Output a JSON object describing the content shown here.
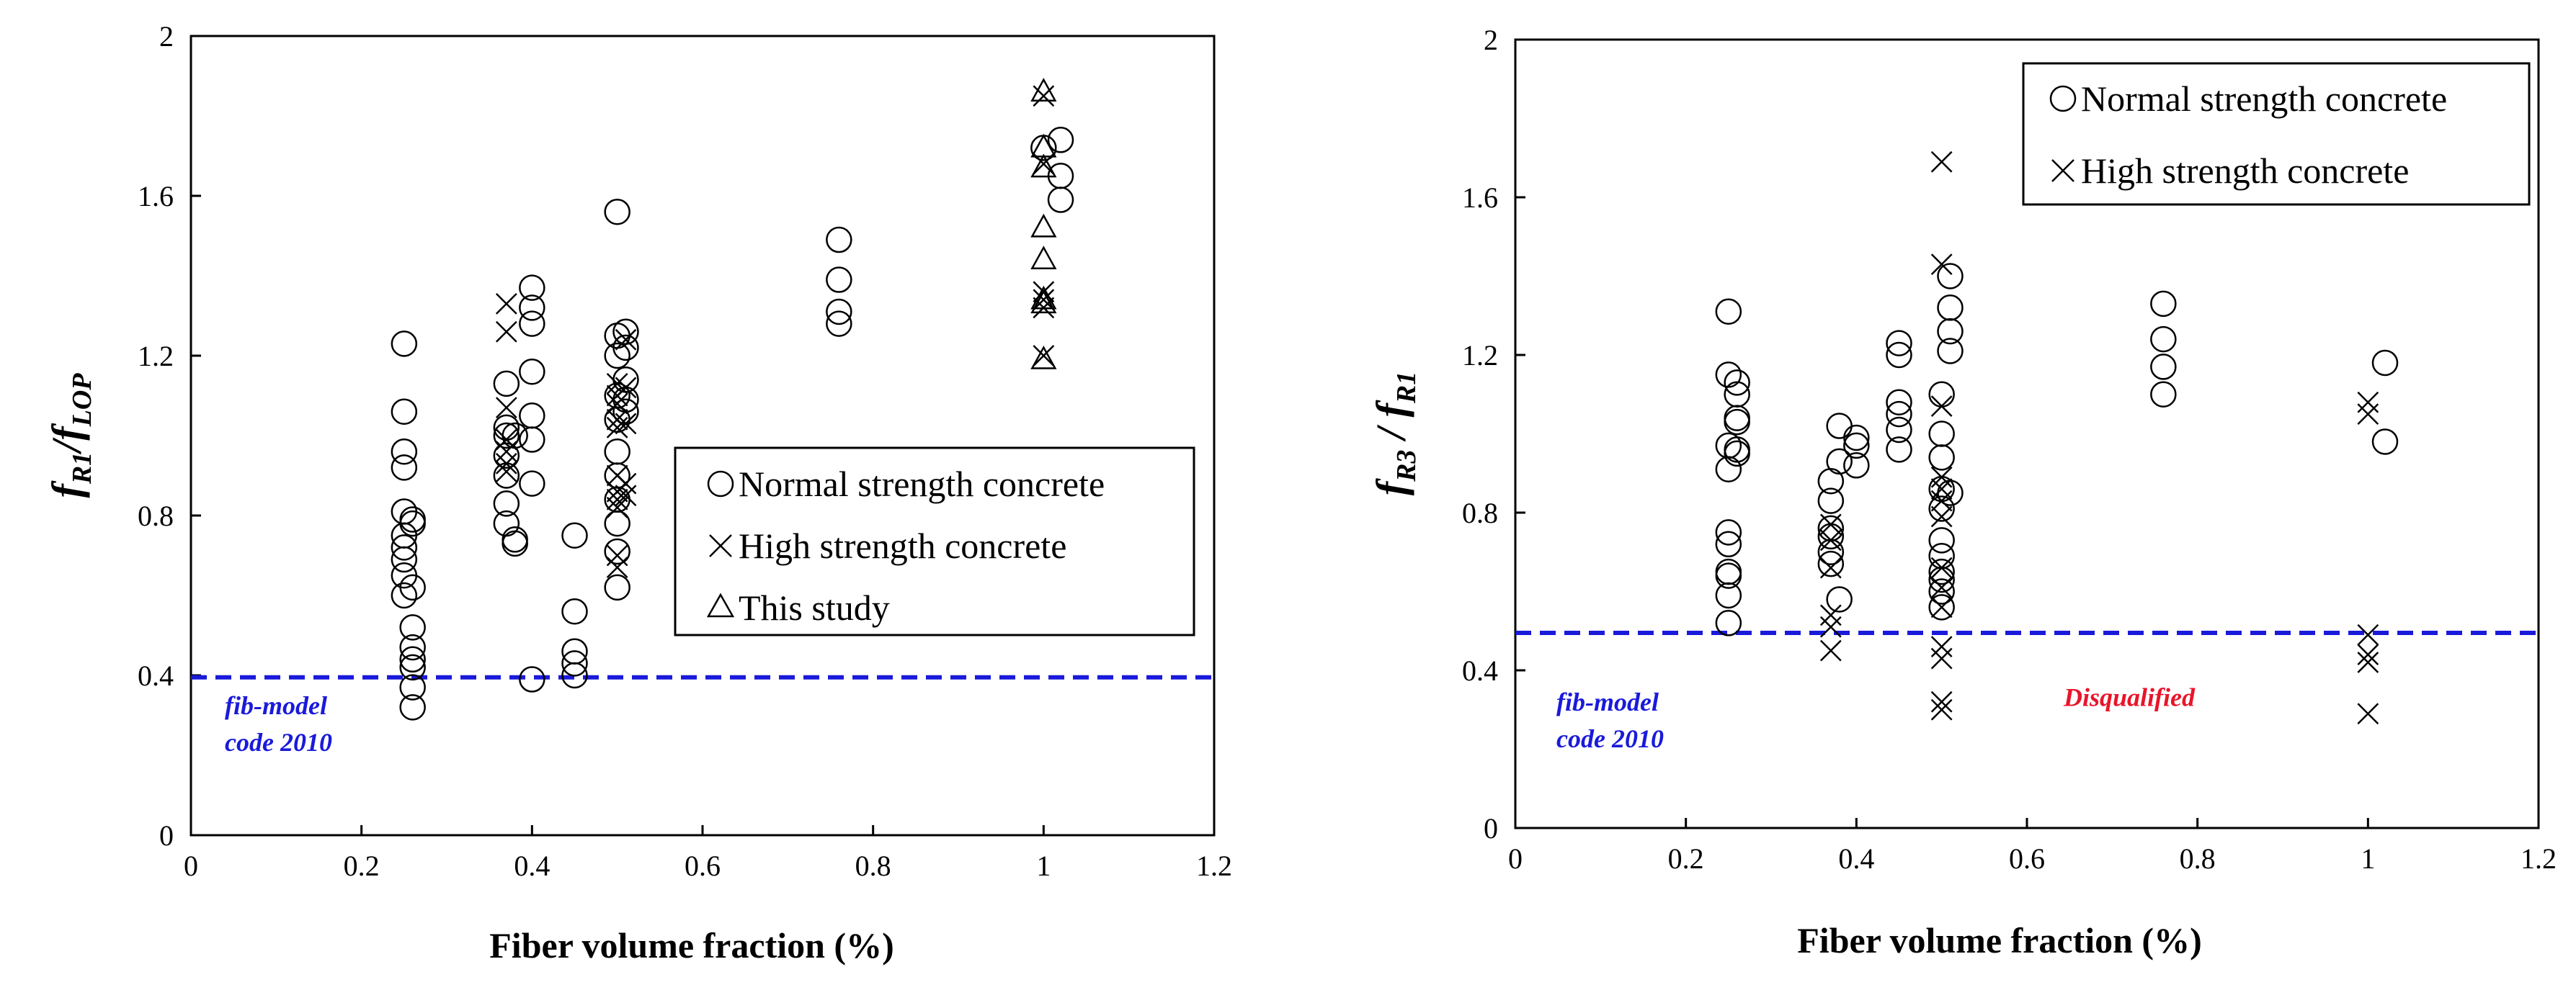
{
  "chart_data": [
    {
      "type": "scatter",
      "xlabel": "Fiber volume fraction (%)",
      "ylabel": {
        "base1": "f",
        "sub1": "R1",
        "sep": "/",
        "base2": "f",
        "sub2": "LOP"
      },
      "xlim": [
        0,
        1.2
      ],
      "ylim": [
        0,
        2
      ],
      "xticks": [
        0,
        0.2,
        0.4,
        0.6,
        0.8,
        1,
        1.2
      ],
      "yticks": [
        0,
        0.4,
        0.8,
        1.2,
        1.6,
        2
      ],
      "xtick_labels": [
        "0",
        "0.2",
        "0.4",
        "0.6",
        "0.8",
        "1",
        "1.2"
      ],
      "ytick_labels": [
        "0",
        "0.4",
        "0.8",
        "1.2",
        "1.6",
        "2"
      ],
      "legend_position": "right-middle",
      "series": [
        {
          "name": "Normal strength concrete",
          "marker": "circle",
          "points": [
            [
              0.25,
              1.23
            ],
            [
              0.25,
              1.06
            ],
            [
              0.25,
              0.96
            ],
            [
              0.25,
              0.92
            ],
            [
              0.25,
              0.81
            ],
            [
              0.25,
              0.75
            ],
            [
              0.25,
              0.72
            ],
            [
              0.25,
              0.69
            ],
            [
              0.25,
              0.65
            ],
            [
              0.25,
              0.6
            ],
            [
              0.26,
              0.78
            ],
            [
              0.26,
              0.79
            ],
            [
              0.26,
              0.62
            ],
            [
              0.26,
              0.52
            ],
            [
              0.26,
              0.47
            ],
            [
              0.26,
              0.44
            ],
            [
              0.26,
              0.42
            ],
            [
              0.26,
              0.37
            ],
            [
              0.26,
              0.32
            ],
            [
              0.37,
              1.13
            ],
            [
              0.37,
              1.02
            ],
            [
              0.37,
              1.0
            ],
            [
              0.37,
              0.95
            ],
            [
              0.37,
              0.9
            ],
            [
              0.37,
              0.83
            ],
            [
              0.37,
              0.78
            ],
            [
              0.38,
              0.74
            ],
            [
              0.38,
              0.73
            ],
            [
              0.38,
              1.0
            ],
            [
              0.4,
              1.37
            ],
            [
              0.4,
              1.32
            ],
            [
              0.4,
              1.28
            ],
            [
              0.4,
              1.16
            ],
            [
              0.4,
              1.05
            ],
            [
              0.4,
              0.99
            ],
            [
              0.4,
              0.88
            ],
            [
              0.4,
              0.39
            ],
            [
              0.45,
              0.75
            ],
            [
              0.45,
              0.56
            ],
            [
              0.45,
              0.46
            ],
            [
              0.45,
              0.43
            ],
            [
              0.45,
              0.4
            ],
            [
              0.5,
              1.56
            ],
            [
              0.5,
              1.25
            ],
            [
              0.5,
              1.2
            ],
            [
              0.5,
              1.1
            ],
            [
              0.5,
              1.04
            ],
            [
              0.5,
              0.96
            ],
            [
              0.5,
              0.9
            ],
            [
              0.5,
              0.84
            ],
            [
              0.5,
              0.78
            ],
            [
              0.5,
              0.71
            ],
            [
              0.5,
              0.62
            ],
            [
              0.51,
              1.26
            ],
            [
              0.51,
              1.22
            ],
            [
              0.51,
              1.14
            ],
            [
              0.51,
              1.06
            ],
            [
              0.51,
              1.09
            ],
            [
              0.76,
              1.49
            ],
            [
              0.76,
              1.39
            ],
            [
              0.76,
              1.31
            ],
            [
              0.76,
              1.28
            ],
            [
              1.0,
              1.72
            ],
            [
              1.02,
              1.74
            ],
            [
              1.02,
              1.65
            ],
            [
              1.02,
              1.59
            ]
          ]
        },
        {
          "name": "High strength concrete",
          "marker": "x",
          "points": [
            [
              0.37,
              1.33
            ],
            [
              0.37,
              1.26
            ],
            [
              0.37,
              1.07
            ],
            [
              0.37,
              0.99
            ],
            [
              0.37,
              0.96
            ],
            [
              0.37,
              0.93
            ],
            [
              0.37,
              0.91
            ],
            [
              0.5,
              1.13
            ],
            [
              0.5,
              1.1
            ],
            [
              0.5,
              1.08
            ],
            [
              0.5,
              1.04
            ],
            [
              0.5,
              1.02
            ],
            [
              0.5,
              0.9
            ],
            [
              0.5,
              0.86
            ],
            [
              0.5,
              0.84
            ],
            [
              0.5,
              0.82
            ],
            [
              0.5,
              0.7
            ],
            [
              0.5,
              0.67
            ],
            [
              0.51,
              1.24
            ],
            [
              0.51,
              1.12
            ],
            [
              0.51,
              1.03
            ],
            [
              0.51,
              0.88
            ],
            [
              0.51,
              0.85
            ],
            [
              1.0,
              1.85
            ],
            [
              1.0,
              1.68
            ],
            [
              1.0,
              1.36
            ],
            [
              1.0,
              1.34
            ],
            [
              1.0,
              1.32
            ],
            [
              1.0,
              1.2
            ]
          ]
        },
        {
          "name": "This study",
          "marker": "triangle",
          "points": [
            [
              1.0,
              1.86
            ],
            [
              1.0,
              1.72
            ],
            [
              1.0,
              1.67
            ],
            [
              1.0,
              1.52
            ],
            [
              1.0,
              1.44
            ],
            [
              1.0,
              1.34
            ],
            [
              1.0,
              1.33
            ],
            [
              1.0,
              1.19
            ]
          ]
        }
      ],
      "reference_line": {
        "y": 0.395,
        "label_lines": [
          "fib-model",
          "code 2010"
        ],
        "color": "#1a1adb"
      }
    },
    {
      "type": "scatter",
      "xlabel": "Fiber volume fraction (%)",
      "ylabel": {
        "base1": "f",
        "sub1": "R3",
        "sep": " / ",
        "base2": "f",
        "sub2": "R1"
      },
      "xlim": [
        0,
        1.2
      ],
      "ylim": [
        0,
        2
      ],
      "xticks": [
        0,
        0.2,
        0.4,
        0.6,
        0.8,
        1,
        1.2
      ],
      "yticks": [
        0,
        0.4,
        0.8,
        1.2,
        1.6,
        2
      ],
      "xtick_labels": [
        "0",
        "0.2",
        "0.4",
        "0.6",
        "0.8",
        "1",
        "1.2"
      ],
      "ytick_labels": [
        "0",
        "0.4",
        "0.8",
        "1.2",
        "1.6",
        "2"
      ],
      "legend_position": "top-right",
      "series": [
        {
          "name": "Normal strength concrete",
          "marker": "circle",
          "points": [
            [
              0.25,
              1.31
            ],
            [
              0.25,
              1.15
            ],
            [
              0.25,
              0.97
            ],
            [
              0.25,
              0.91
            ],
            [
              0.25,
              0.75
            ],
            [
              0.25,
              0.72
            ],
            [
              0.25,
              0.65
            ],
            [
              0.25,
              0.64
            ],
            [
              0.25,
              0.59
            ],
            [
              0.25,
              0.52
            ],
            [
              0.26,
              1.13
            ],
            [
              0.26,
              1.1
            ],
            [
              0.26,
              1.04
            ],
            [
              0.26,
              1.03
            ],
            [
              0.26,
              0.96
            ],
            [
              0.26,
              0.95
            ],
            [
              0.37,
              0.88
            ],
            [
              0.37,
              0.83
            ],
            [
              0.37,
              0.76
            ],
            [
              0.37,
              0.74
            ],
            [
              0.37,
              0.7
            ],
            [
              0.37,
              0.67
            ],
            [
              0.38,
              1.02
            ],
            [
              0.38,
              0.93
            ],
            [
              0.38,
              0.58
            ],
            [
              0.4,
              0.99
            ],
            [
              0.4,
              0.97
            ],
            [
              0.4,
              0.92
            ],
            [
              0.45,
              1.23
            ],
            [
              0.45,
              1.2
            ],
            [
              0.45,
              1.08
            ],
            [
              0.45,
              1.05
            ],
            [
              0.45,
              1.01
            ],
            [
              0.45,
              0.96
            ],
            [
              0.5,
              1.1
            ],
            [
              0.5,
              1.0
            ],
            [
              0.5,
              0.94
            ],
            [
              0.5,
              0.86
            ],
            [
              0.5,
              0.81
            ],
            [
              0.5,
              0.73
            ],
            [
              0.5,
              0.69
            ],
            [
              0.5,
              0.65
            ],
            [
              0.5,
              0.63
            ],
            [
              0.5,
              0.6
            ],
            [
              0.5,
              0.56
            ],
            [
              0.51,
              1.4
            ],
            [
              0.51,
              1.32
            ],
            [
              0.51,
              1.26
            ],
            [
              0.51,
              1.21
            ],
            [
              0.51,
              0.85
            ],
            [
              0.76,
              1.33
            ],
            [
              0.76,
              1.24
            ],
            [
              0.76,
              1.17
            ],
            [
              0.76,
              1.1
            ],
            [
              1.02,
              1.18
            ],
            [
              1.02,
              0.98
            ]
          ]
        },
        {
          "name": "High strength concrete",
          "marker": "x",
          "points": [
            [
              0.37,
              0.77
            ],
            [
              0.37,
              0.73
            ],
            [
              0.37,
              0.66
            ],
            [
              0.37,
              0.54
            ],
            [
              0.37,
              0.51
            ],
            [
              0.37,
              0.45
            ],
            [
              0.5,
              1.69
            ],
            [
              0.5,
              1.43
            ],
            [
              0.5,
              1.07
            ],
            [
              0.5,
              0.89
            ],
            [
              0.5,
              0.86
            ],
            [
              0.5,
              0.83
            ],
            [
              0.5,
              0.79
            ],
            [
              0.5,
              0.66
            ],
            [
              0.5,
              0.61
            ],
            [
              0.5,
              0.56
            ],
            [
              0.5,
              0.46
            ],
            [
              0.5,
              0.43
            ],
            [
              0.5,
              0.32
            ],
            [
              0.5,
              0.3
            ],
            [
              1.0,
              1.08
            ],
            [
              1.0,
              1.05
            ],
            [
              1.0,
              0.49
            ],
            [
              1.0,
              0.44
            ],
            [
              1.0,
              0.42
            ],
            [
              1.0,
              0.29
            ]
          ]
        }
      ],
      "reference_line": {
        "y": 0.495,
        "label_lines": [
          "fib-model",
          "code 2010"
        ],
        "color": "#1a1adb"
      },
      "annotations": [
        {
          "text": "Disqualified",
          "x": 0.72,
          "y": 0.31,
          "color": "#e8152a"
        }
      ]
    }
  ]
}
